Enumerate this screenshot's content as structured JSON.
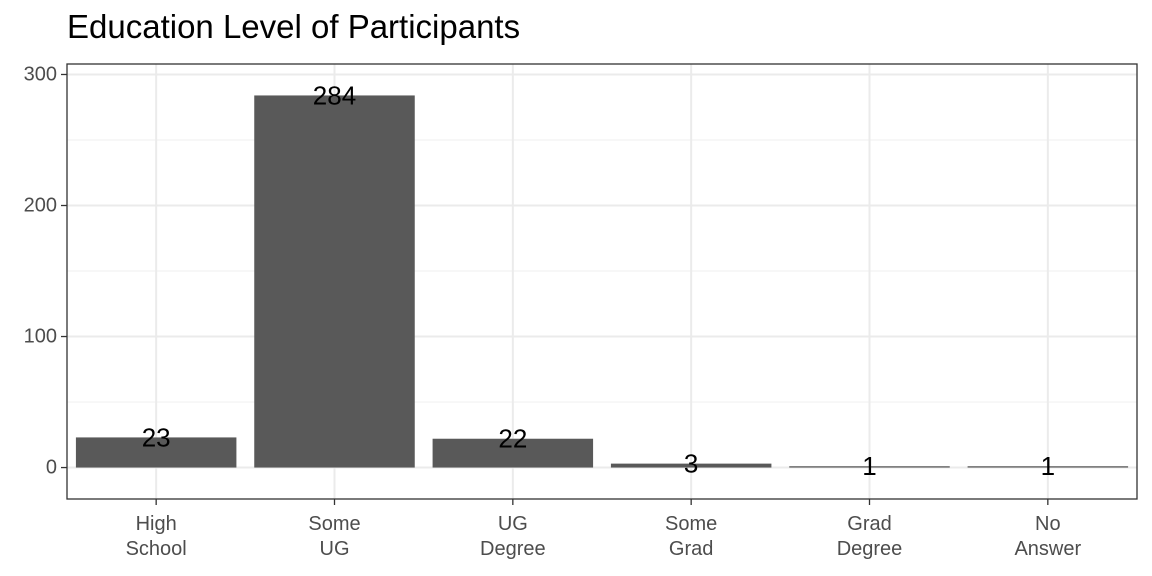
{
  "chart_data": {
    "type": "bar",
    "title": "Education Level of Participants",
    "xlabel": "",
    "ylabel": "",
    "categories": [
      [
        "High",
        "School"
      ],
      [
        "Some",
        "UG"
      ],
      [
        "UG",
        "Degree"
      ],
      [
        "Some",
        "Grad"
      ],
      [
        "Grad",
        "Degree"
      ],
      [
        "No",
        "Answer"
      ]
    ],
    "values": [
      23,
      284,
      22,
      3,
      1,
      1
    ],
    "data_labels": [
      "23",
      "284",
      "22",
      "3",
      "1",
      "1"
    ],
    "y_ticks": [
      0,
      100,
      200,
      300
    ],
    "y_tick_labels": [
      "0",
      "100",
      "200",
      "300"
    ],
    "ylim": [
      -24,
      308
    ],
    "grid": true,
    "legend": "none",
    "colors": {
      "bar": "#595959",
      "panel_border": "#333333",
      "grid_major": "#ebebeb",
      "grid_minor": "#f2f2f2",
      "axis_text": "#4d4d4d",
      "label_text": "#000000"
    }
  }
}
